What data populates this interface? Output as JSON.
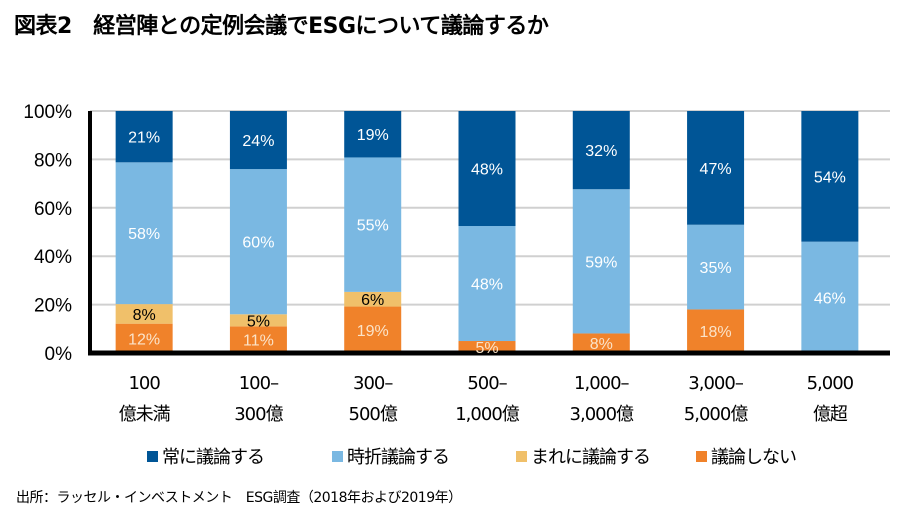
{
  "title": "図表2　経営陣との定例会議でESGについて議論するか",
  "source": "出所：ラッセル・インベストメント　ESG調査（2018年および2019年）",
  "chart_data": {
    "type": "bar",
    "stacked": true,
    "title": "図表2　経営陣との定例会議でESGについて議論するか",
    "xlabel": "",
    "ylabel": "",
    "ylim": [
      0,
      100
    ],
    "yticks": [
      "0%",
      "20%",
      "40%",
      "60%",
      "80%",
      "100%"
    ],
    "grid": true,
    "legend_position": "bottom",
    "categories": [
      [
        "100",
        "億未満"
      ],
      [
        "100–",
        "300億"
      ],
      [
        "300–",
        "500億"
      ],
      [
        "500–",
        "1,000億"
      ],
      [
        "1,000–",
        "3,000億"
      ],
      [
        "3,000–",
        "5,000億"
      ],
      [
        "5,000",
        "億超"
      ]
    ],
    "series": [
      {
        "name": "議論しない",
        "color": "#F0822A",
        "label_color": "#FBE3C8",
        "values": [
          12,
          11,
          19,
          5,
          8,
          18,
          0
        ]
      },
      {
        "name": "まれに議論する",
        "color": "#F0C06A",
        "label_color": "#000000",
        "values": [
          8,
          5,
          6,
          0,
          0,
          0,
          0
        ]
      },
      {
        "name": "時折議論する",
        "color": "#7AB8E2",
        "label_color": "#FFFFFF",
        "values": [
          58,
          60,
          55,
          48,
          59,
          35,
          46
        ]
      },
      {
        "name": "常に議論する",
        "color": "#005596",
        "label_color": "#FFFFFF",
        "values": [
          21,
          24,
          19,
          48,
          32,
          47,
          54
        ]
      }
    ],
    "legend_order": [
      "常に議論する",
      "時折議論する",
      "まれに議論する",
      "議論しない"
    ]
  }
}
